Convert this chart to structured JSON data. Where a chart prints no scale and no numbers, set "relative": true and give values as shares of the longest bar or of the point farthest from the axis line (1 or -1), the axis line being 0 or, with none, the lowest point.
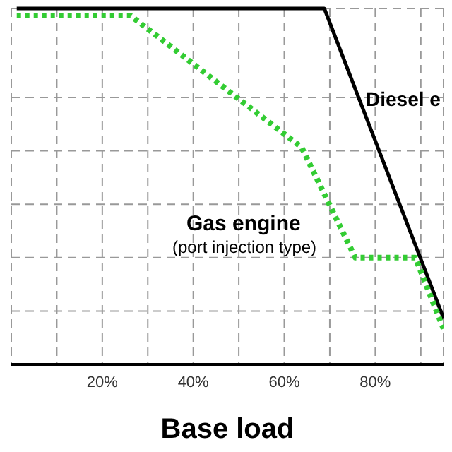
{
  "chart_data": {
    "type": "line",
    "xlabel": "Base load",
    "relative": true,
    "xlim": [
      0,
      95
    ],
    "xticks": [
      {
        "value": 10,
        "label": null
      },
      {
        "value": 20,
        "label": "20%"
      },
      {
        "value": 30,
        "label": null
      },
      {
        "value": 40,
        "label": "40%"
      },
      {
        "value": 50,
        "label": null
      },
      {
        "value": 60,
        "label": "60%"
      },
      {
        "value": 70,
        "label": null
      },
      {
        "value": 80,
        "label": "80%"
      },
      {
        "value": 90,
        "label": null
      }
    ],
    "grid": true,
    "legend": false,
    "marker": "none",
    "series": [
      {
        "name": "Diesel e",
        "color": "#000000",
        "line_style": "solid",
        "x": [
          1.2,
          68.8,
          95
        ],
        "values": [
          1,
          1,
          0.13
        ]
      },
      {
        "name": "Gas engine",
        "color": "#33cc33",
        "line_style": "dotted",
        "x": [
          1.2,
          26.2,
          63.8,
          75.6,
          88.8,
          95
        ],
        "values": [
          0.98,
          0.98,
          0.61,
          0.3,
          0.3,
          0.1
        ]
      }
    ],
    "annotations": [
      "(port injection type)"
    ]
  }
}
